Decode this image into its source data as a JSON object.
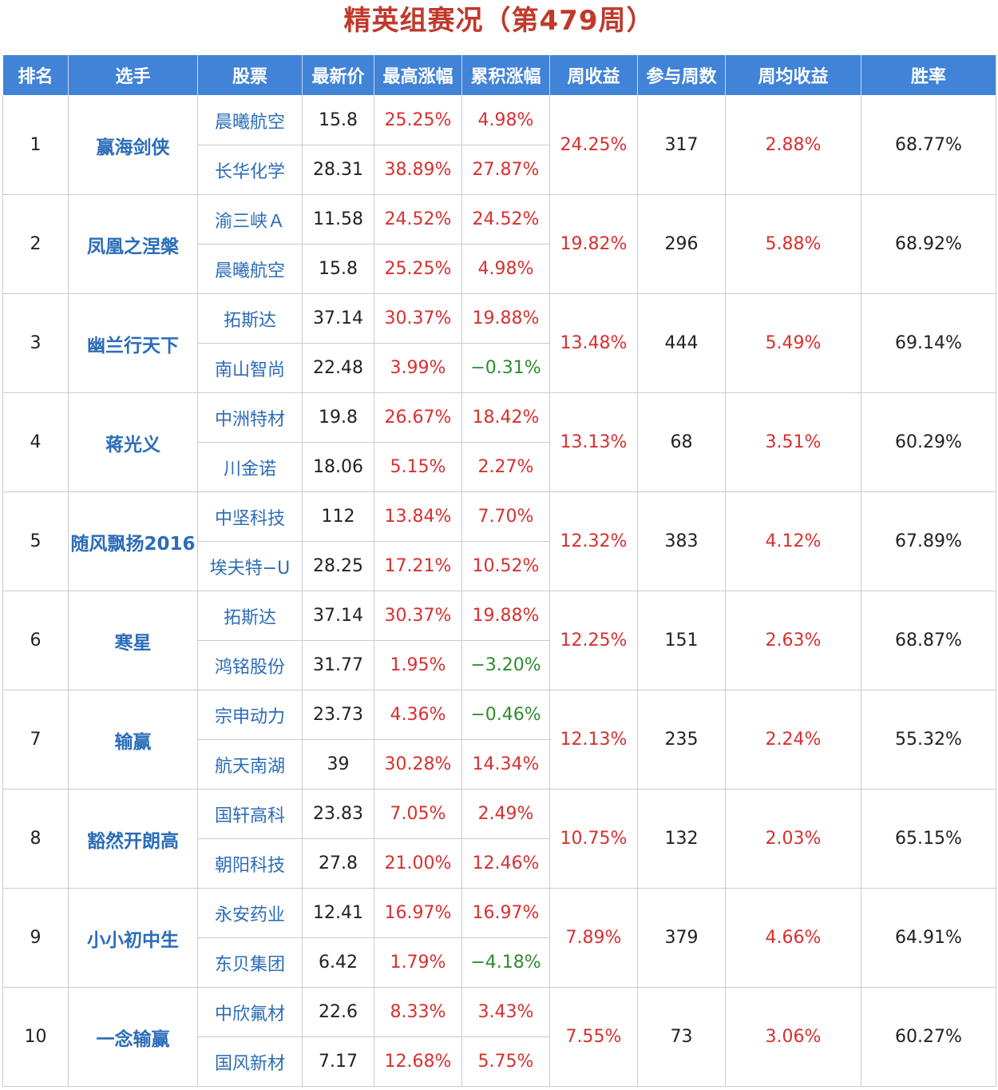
{
  "title": "精英组赛况（第479周）",
  "headers": [
    "排名",
    "选手",
    "股票",
    "最新价",
    "最高涨幅",
    "累积涨幅",
    "周收益",
    "参与周数",
    "周均收益",
    "胜率"
  ],
  "colors": {
    "header_bg": "#4183d7",
    "positive": "#d8302f",
    "negative": "#2e8b2e",
    "link": "#2b6cb8",
    "title": "#c0392b"
  },
  "rows": [
    {
      "rank": "1",
      "player": "赢海剑侠",
      "stocks": [
        {
          "name": "晨曦航空",
          "price": "15.8",
          "max_gain": "25.25%",
          "cum_gain": "4.98%"
        },
        {
          "name": "长华化学",
          "price": "28.31",
          "max_gain": "38.89%",
          "cum_gain": "27.87%"
        }
      ],
      "weekly": "24.25%",
      "weeks": "317",
      "avg": "2.88%",
      "win": "68.77%"
    },
    {
      "rank": "2",
      "player": "凤凰之涅槃",
      "stocks": [
        {
          "name": "渝三峡Ａ",
          "price": "11.58",
          "max_gain": "24.52%",
          "cum_gain": "24.52%"
        },
        {
          "name": "晨曦航空",
          "price": "15.8",
          "max_gain": "25.25%",
          "cum_gain": "4.98%"
        }
      ],
      "weekly": "19.82%",
      "weeks": "296",
      "avg": "5.88%",
      "win": "68.92%"
    },
    {
      "rank": "3",
      "player": "幽兰行天下",
      "stocks": [
        {
          "name": "拓斯达",
          "price": "37.14",
          "max_gain": "30.37%",
          "cum_gain": "19.88%"
        },
        {
          "name": "南山智尚",
          "price": "22.48",
          "max_gain": "3.99%",
          "cum_gain": "−0.31%"
        }
      ],
      "weekly": "13.48%",
      "weeks": "444",
      "avg": "5.49%",
      "win": "69.14%"
    },
    {
      "rank": "4",
      "player": "蒋光义",
      "stocks": [
        {
          "name": "中洲特材",
          "price": "19.8",
          "max_gain": "26.67%",
          "cum_gain": "18.42%"
        },
        {
          "name": "川金诺",
          "price": "18.06",
          "max_gain": "5.15%",
          "cum_gain": "2.27%"
        }
      ],
      "weekly": "13.13%",
      "weeks": "68",
      "avg": "3.51%",
      "win": "60.29%"
    },
    {
      "rank": "5",
      "player": "随风飘扬2016",
      "stocks": [
        {
          "name": "中坚科技",
          "price": "112",
          "max_gain": "13.84%",
          "cum_gain": "7.70%"
        },
        {
          "name": "埃夫特−U",
          "price": "28.25",
          "max_gain": "17.21%",
          "cum_gain": "10.52%"
        }
      ],
      "weekly": "12.32%",
      "weeks": "383",
      "avg": "4.12%",
      "win": "67.89%"
    },
    {
      "rank": "6",
      "player": "寒星",
      "stocks": [
        {
          "name": "拓斯达",
          "price": "37.14",
          "max_gain": "30.37%",
          "cum_gain": "19.88%"
        },
        {
          "name": "鸿铭股份",
          "price": "31.77",
          "max_gain": "1.95%",
          "cum_gain": "−3.20%"
        }
      ],
      "weekly": "12.25%",
      "weeks": "151",
      "avg": "2.63%",
      "win": "68.87%"
    },
    {
      "rank": "7",
      "player": "输赢",
      "stocks": [
        {
          "name": "宗申动力",
          "price": "23.73",
          "max_gain": "4.36%",
          "cum_gain": "−0.46%"
        },
        {
          "name": "航天南湖",
          "price": "39",
          "max_gain": "30.28%",
          "cum_gain": "14.34%"
        }
      ],
      "weekly": "12.13%",
      "weeks": "235",
      "avg": "2.24%",
      "win": "55.32%"
    },
    {
      "rank": "8",
      "player": "豁然开朗高",
      "stocks": [
        {
          "name": "国轩高科",
          "price": "23.83",
          "max_gain": "7.05%",
          "cum_gain": "2.49%"
        },
        {
          "name": "朝阳科技",
          "price": "27.8",
          "max_gain": "21.00%",
          "cum_gain": "12.46%"
        }
      ],
      "weekly": "10.75%",
      "weeks": "132",
      "avg": "2.03%",
      "win": "65.15%"
    },
    {
      "rank": "9",
      "player": "小小初中生",
      "stocks": [
        {
          "name": "永安药业",
          "price": "12.41",
          "max_gain": "16.97%",
          "cum_gain": "16.97%"
        },
        {
          "name": "东贝集团",
          "price": "6.42",
          "max_gain": "1.79%",
          "cum_gain": "−4.18%"
        }
      ],
      "weekly": "7.89%",
      "weeks": "379",
      "avg": "4.66%",
      "win": "64.91%"
    },
    {
      "rank": "10",
      "player": "一念输赢",
      "stocks": [
        {
          "name": "中欣氟材",
          "price": "22.6",
          "max_gain": "8.33%",
          "cum_gain": "3.43%"
        },
        {
          "name": "国风新材",
          "price": "7.17",
          "max_gain": "12.68%",
          "cum_gain": "5.75%"
        }
      ],
      "weekly": "7.55%",
      "weeks": "73",
      "avg": "3.06%",
      "win": "60.27%"
    }
  ]
}
